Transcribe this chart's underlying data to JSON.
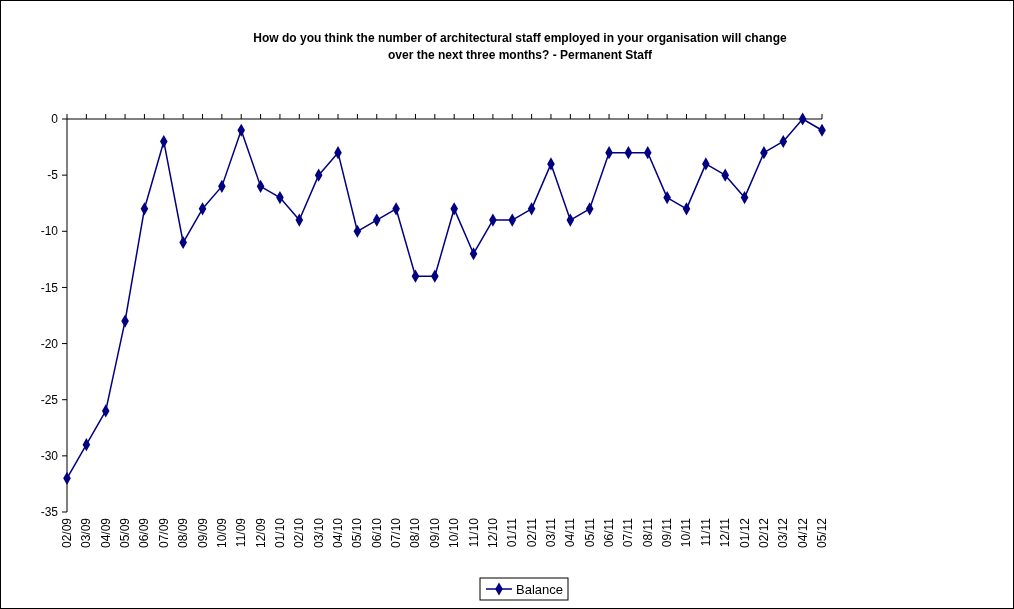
{
  "chart_data": {
    "type": "line",
    "title": "How do you think the number of architectural staff employed in your organisation will change\nover the next three months? - Permanent Staff",
    "categories": [
      "02/09",
      "03/09",
      "04/09",
      "05/09",
      "06/09",
      "07/09",
      "08/09",
      "09/09",
      "10/09",
      "11/09",
      "12/09",
      "01/10",
      "02/10",
      "03/10",
      "04/10",
      "05/10",
      "06/10",
      "07/10",
      "08/10",
      "09/10",
      "10/10",
      "11/10",
      "12/10",
      "01/11",
      "02/11",
      "03/11",
      "04/11",
      "05/11",
      "06/11",
      "07/11",
      "08/11",
      "09/11",
      "10/11",
      "11/11",
      "12/11",
      "01/12",
      "02/12",
      "03/12",
      "04/12",
      "05/12"
    ],
    "series": [
      {
        "name": "Balance",
        "color": "#000080",
        "values": [
          -32,
          -29,
          -26,
          -18,
          -8,
          -2,
          -11,
          -8,
          -6,
          -1,
          -6,
          -7,
          -9,
          -5,
          -3,
          -10,
          -9,
          -8,
          -14,
          -14,
          -8,
          -12,
          -9,
          -9,
          -8,
          -4,
          -9,
          -8,
          -3,
          -3,
          -3,
          -7,
          -8,
          -4,
          -5,
          -7,
          -3,
          -2,
          0,
          -1
        ]
      }
    ],
    "ylim": [
      -35,
      0
    ],
    "yticks": [
      0,
      -5,
      -10,
      -15,
      -20,
      -25,
      -30,
      -35
    ],
    "marker": "diamond",
    "legend": "bottom",
    "grid": false
  }
}
